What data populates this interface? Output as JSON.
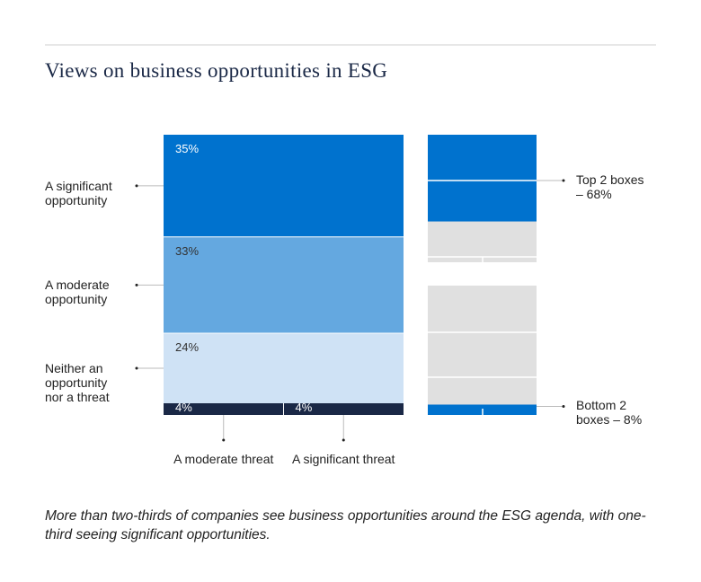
{
  "chart_data": {
    "type": "stacked-column",
    "title": "Views on business opportunities in ESG",
    "segments": [
      {
        "name": "A significant opportunity",
        "value": 35,
        "value_label": "35%",
        "color": "#0072ce"
      },
      {
        "name": "A moderate opportunity",
        "value": 33,
        "value_label": "33%",
        "color": "#64a8e0"
      },
      {
        "name": "Neither an opportunity nor a threat",
        "value": 24,
        "value_label": "24%",
        "color": "#cfe2f5"
      },
      {
        "name": "A moderate threat",
        "value": 4,
        "value_label": "4%",
        "color": "#1a2846",
        "row": "bottom"
      },
      {
        "name": "A significant threat",
        "value": 4,
        "value_label": "4%",
        "color": "#1a2846",
        "row": "bottom"
      }
    ],
    "summary": [
      {
        "label": "Top 2 boxes – 68%",
        "value": 68,
        "color": "#0072ce"
      },
      {
        "label": "Bottom 2 boxes – 8%",
        "value": 8,
        "color": "#0072ce"
      }
    ],
    "caption": "More than two-thirds of companies see business opportunities around the ESG agenda, with one-third seeing significant opportunities."
  }
}
